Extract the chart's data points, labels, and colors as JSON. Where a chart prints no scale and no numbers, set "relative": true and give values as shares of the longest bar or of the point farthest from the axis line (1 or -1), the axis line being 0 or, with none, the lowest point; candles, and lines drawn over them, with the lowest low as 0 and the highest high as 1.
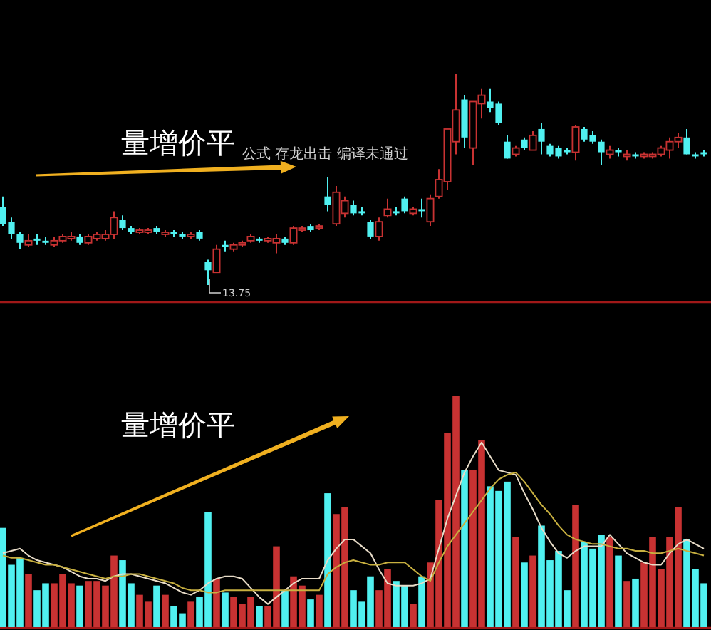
{
  "chart_data": [
    {
      "type": "candlestick",
      "relative": true,
      "categories": [
        null,
        null,
        null,
        null,
        null,
        null,
        null,
        null,
        null,
        null,
        null,
        null,
        null,
        null,
        null,
        null,
        null,
        null,
        null,
        null,
        null,
        null,
        null,
        null,
        null,
        null,
        null,
        null,
        null,
        null,
        null,
        null,
        null,
        null,
        null,
        null,
        null,
        null,
        null,
        null,
        null,
        null,
        null,
        null,
        null,
        null,
        null,
        null,
        null,
        null,
        null,
        null,
        null,
        null,
        null,
        null,
        null,
        null,
        null,
        null,
        null,
        null,
        null,
        null,
        null,
        null,
        null,
        null,
        null,
        null,
        null,
        null,
        null,
        null,
        null,
        null,
        null,
        null,
        null,
        null,
        null,
        null,
        null
      ],
      "ohlc": [
        [
          0.37,
          0.42,
          0.28,
          0.29
        ],
        [
          0.3,
          0.32,
          0.22,
          0.24
        ],
        [
          0.24,
          0.25,
          0.17,
          0.2
        ],
        [
          0.19,
          0.24,
          0.18,
          0.21
        ],
        [
          0.22,
          0.24,
          0.19,
          0.21
        ],
        [
          0.21,
          0.23,
          0.19,
          0.2
        ],
        [
          0.19,
          0.23,
          0.18,
          0.21
        ],
        [
          0.21,
          0.24,
          0.2,
          0.23
        ],
        [
          0.22,
          0.25,
          0.21,
          0.23
        ],
        [
          0.23,
          0.24,
          0.19,
          0.2
        ],
        [
          0.2,
          0.24,
          0.19,
          0.23
        ],
        [
          0.22,
          0.25,
          0.21,
          0.24
        ],
        [
          0.22,
          0.26,
          0.21,
          0.24
        ],
        [
          0.24,
          0.35,
          0.22,
          0.32
        ],
        [
          0.31,
          0.33,
          0.26,
          0.27
        ],
        [
          0.27,
          0.28,
          0.24,
          0.25
        ],
        [
          0.25,
          0.27,
          0.24,
          0.26
        ],
        [
          0.25,
          0.27,
          0.24,
          0.26
        ],
        [
          0.27,
          0.28,
          0.24,
          0.25
        ],
        [
          0.24,
          0.26,
          0.23,
          0.25
        ],
        [
          0.25,
          0.26,
          0.23,
          0.24
        ],
        [
          0.24,
          0.25,
          0.22,
          0.23
        ],
        [
          0.23,
          0.25,
          0.22,
          0.24
        ],
        [
          0.25,
          0.26,
          0.21,
          0.22
        ],
        [
          0.11,
          0.12,
          0,
          0.07
        ],
        [
          0.06,
          0.19,
          0.06,
          0.17
        ],
        [
          0.19,
          0.21,
          0.16,
          0.18
        ],
        [
          0.17,
          0.2,
          0.16,
          0.19
        ],
        [
          0.19,
          0.21,
          0.18,
          0.2
        ],
        [
          0.21,
          0.24,
          0.2,
          0.23
        ],
        [
          0.22,
          0.23,
          0.2,
          0.21
        ],
        [
          0.21,
          0.23,
          0.2,
          0.22
        ],
        [
          0.2,
          0.24,
          0.15,
          0.22
        ],
        [
          0.22,
          0.23,
          0.19,
          0.2
        ],
        [
          0.2,
          0.28,
          0.19,
          0.27
        ],
        [
          0.26,
          0.28,
          0.25,
          0.27
        ],
        [
          0.28,
          0.29,
          0.25,
          0.26
        ],
        [
          0.27,
          0.29,
          0.26,
          0.28
        ],
        [
          0.42,
          0.51,
          0.35,
          0.38
        ],
        [
          0.29,
          0.47,
          0.28,
          0.44
        ],
        [
          0.34,
          0.42,
          0.32,
          0.4
        ],
        [
          0.38,
          0.4,
          0.33,
          0.34
        ],
        [
          0.35,
          0.37,
          0.33,
          0.34
        ],
        [
          0.3,
          0.31,
          0.22,
          0.23
        ],
        [
          0.23,
          0.32,
          0.21,
          0.3
        ],
        [
          0.33,
          0.41,
          0.32,
          0.36
        ],
        [
          0.35,
          0.37,
          0.33,
          0.34
        ],
        [
          0.41,
          0.42,
          0.34,
          0.35
        ],
        [
          0.34,
          0.37,
          0.33,
          0.36
        ],
        [
          0.36,
          0.41,
          0.32,
          0.35
        ],
        [
          0.3,
          0.43,
          0.28,
          0.41
        ],
        [
          0.42,
          0.55,
          0.41,
          0.5
        ],
        [
          0.49,
          0.74,
          0.45,
          0.74
        ],
        [
          0.68,
          1,
          0.62,
          0.83
        ],
        [
          0.88,
          0.9,
          0.65,
          0.7
        ],
        [
          0.65,
          0.87,
          0.57,
          0.87
        ],
        [
          0.86,
          0.93,
          0.79,
          0.9
        ],
        [
          0.87,
          0.93,
          0.82,
          0.84
        ],
        [
          0.86,
          0.87,
          0.76,
          0.77
        ],
        [
          0.68,
          0.71,
          0.6,
          0.6
        ],
        [
          0.62,
          0.66,
          0.61,
          0.65
        ],
        [
          0.69,
          0.7,
          0.64,
          0.65
        ],
        [
          0.64,
          0.73,
          0.64,
          0.71
        ],
        [
          0.74,
          0.77,
          0.62,
          0.68
        ],
        [
          0.66,
          0.67,
          0.61,
          0.62
        ],
        [
          0.65,
          0.66,
          0.6,
          0.61
        ],
        [
          0.64,
          0.65,
          0.62,
          0.63
        ],
        [
          0.63,
          0.76,
          0.59,
          0.75
        ],
        [
          0.74,
          0.75,
          0.68,
          0.69
        ],
        [
          0.71,
          0.73,
          0.67,
          0.68
        ],
        [
          0.68,
          0.69,
          0.57,
          0.63
        ],
        [
          0.62,
          0.66,
          0.6,
          0.64
        ],
        [
          0.64,
          0.65,
          0.61,
          0.63
        ],
        [
          0.61,
          0.64,
          0.59,
          0.62
        ],
        [
          0.62,
          0.63,
          0.6,
          0.61
        ],
        [
          0.61,
          0.63,
          0.6,
          0.62
        ],
        [
          0.61,
          0.63,
          0.6,
          0.62
        ],
        [
          0.62,
          0.66,
          0.61,
          0.65
        ],
        [
          0.64,
          0.7,
          0.6,
          0.68
        ],
        [
          0.68,
          0.72,
          0.65,
          0.7
        ],
        [
          0.7,
          0.74,
          0.62,
          0.62
        ],
        [
          0.62,
          0.63,
          0.6,
          0.61
        ],
        [
          0.63,
          0.64,
          0.61,
          0.62
        ]
      ],
      "colors": [
        "#50f0f0",
        "#50f0f0",
        "#50f0f0",
        "#c83232",
        "#50f0f0",
        "#50f0f0",
        "#c83232",
        "#c83232",
        "#c83232",
        "#50f0f0",
        "#c83232",
        "#c83232",
        "#c83232",
        "#c83232",
        "#50f0f0",
        "#50f0f0",
        "#c83232",
        "#c83232",
        "#50f0f0",
        "#c83232",
        "#50f0f0",
        "#50f0f0",
        "#c83232",
        "#50f0f0",
        "#50f0f0",
        "#c83232",
        "#50f0f0",
        "#c83232",
        "#c83232",
        "#c83232",
        "#50f0f0",
        "#c83232",
        "#c83232",
        "#50f0f0",
        "#c83232",
        "#c83232",
        "#50f0f0",
        "#c83232",
        "#50f0f0",
        "#c83232",
        "#c83232",
        "#50f0f0",
        "#50f0f0",
        "#50f0f0",
        "#c83232",
        "#c83232",
        "#50f0f0",
        "#50f0f0",
        "#c83232",
        "#50f0f0",
        "#c83232",
        "#c83232",
        "#c83232",
        "#c83232",
        "#50f0f0",
        "#c83232",
        "#c83232",
        "#50f0f0",
        "#50f0f0",
        "#50f0f0",
        "#c83232",
        "#50f0f0",
        "#c83232",
        "#50f0f0",
        "#50f0f0",
        "#50f0f0",
        "#50f0f0",
        "#c83232",
        "#50f0f0",
        "#50f0f0",
        "#50f0f0",
        "#c83232",
        "#50f0f0",
        "#c83232",
        "#50f0f0",
        "#c83232",
        "#c83232",
        "#c83232",
        "#c83232",
        "#c83232",
        "#50f0f0",
        "#50f0f0",
        "#50f0f0"
      ],
      "annotations": [
        "量增价平",
        "公式 存龙出击 编译未通过",
        "13.75"
      ]
    },
    {
      "type": "bar",
      "relative": true,
      "categories": [
        null,
        null,
        null,
        null,
        null,
        null,
        null,
        null,
        null,
        null,
        null,
        null,
        null,
        null,
        null,
        null,
        null,
        null,
        null,
        null,
        null,
        null,
        null,
        null,
        null,
        null,
        null,
        null,
        null,
        null,
        null,
        null,
        null,
        null,
        null,
        null,
        null,
        null,
        null,
        null,
        null,
        null,
        null,
        null,
        null,
        null,
        null,
        null,
        null,
        null,
        null,
        null,
        null,
        null,
        null,
        null,
        null,
        null,
        null,
        null,
        null,
        null,
        null,
        null,
        null,
        null,
        null,
        null,
        null,
        null,
        null,
        null,
        null,
        null,
        null,
        null,
        null,
        null,
        null,
        null,
        null,
        null,
        null
      ],
      "series": [
        {
          "type": "bar",
          "values": [
            0.43,
            0.27,
            0.3,
            0.23,
            0.16,
            0.19,
            0.19,
            0.23,
            0.19,
            0.18,
            0.2,
            0.2,
            0.18,
            0.31,
            0.29,
            0.19,
            0.14,
            0.11,
            0.18,
            0.14,
            0.09,
            0.06,
            0.11,
            0.13,
            0.5,
            0.21,
            0.15,
            0.13,
            0.1,
            0.13,
            0.09,
            0.09,
            0.35,
            0.16,
            0.22,
            0.18,
            0.12,
            0.14,
            0.58,
            0.49,
            0.52,
            0.16,
            0.11,
            0.22,
            0.16,
            0.25,
            0.2,
            0.18,
            0.1,
            0.22,
            0.28,
            0.55,
            0.84,
            1,
            0.68,
            0.68,
            0.81,
            0.61,
            0.59,
            0.63,
            0.39,
            0.28,
            0.31,
            0.44,
            0.29,
            0.33,
            0.16,
            0.53,
            0.37,
            0.34,
            0.4,
            0.39,
            0.31,
            0.2,
            0.21,
            0.28,
            0.39,
            0.25,
            0.39,
            0.52,
            0.38,
            0.25,
            0.19
          ],
          "colors": [
            "#50f0f0",
            "#50f0f0",
            "#50f0f0",
            "#c83232",
            "#50f0f0",
            "#50f0f0",
            "#c83232",
            "#c83232",
            "#c83232",
            "#50f0f0",
            "#c83232",
            "#c83232",
            "#c83232",
            "#c83232",
            "#50f0f0",
            "#50f0f0",
            "#c83232",
            "#c83232",
            "#50f0f0",
            "#c83232",
            "#50f0f0",
            "#50f0f0",
            "#c83232",
            "#50f0f0",
            "#50f0f0",
            "#c83232",
            "#50f0f0",
            "#c83232",
            "#c83232",
            "#c83232",
            "#50f0f0",
            "#c83232",
            "#c83232",
            "#50f0f0",
            "#c83232",
            "#c83232",
            "#50f0f0",
            "#c83232",
            "#50f0f0",
            "#c83232",
            "#c83232",
            "#50f0f0",
            "#50f0f0",
            "#50f0f0",
            "#c83232",
            "#c83232",
            "#50f0f0",
            "#50f0f0",
            "#c83232",
            "#50f0f0",
            "#c83232",
            "#c83232",
            "#c83232",
            "#c83232",
            "#50f0f0",
            "#c83232",
            "#c83232",
            "#50f0f0",
            "#50f0f0",
            "#50f0f0",
            "#c83232",
            "#50f0f0",
            "#c83232",
            "#50f0f0",
            "#50f0f0",
            "#50f0f0",
            "#50f0f0",
            "#c83232",
            "#50f0f0",
            "#50f0f0",
            "#50f0f0",
            "#c83232",
            "#50f0f0",
            "#c83232",
            "#50f0f0",
            "#c83232",
            "#c83232",
            "#c83232",
            "#c83232",
            "#c83232",
            "#50f0f0",
            "#50f0f0",
            "#50f0f0"
          ]
        },
        {
          "type": "line",
          "color": "#e8dcc8",
          "values": [
            0.32,
            0.33,
            0.34,
            0.31,
            0.29,
            0.28,
            0.27,
            0.26,
            0.24,
            0.22,
            0.21,
            0.21,
            0.2,
            0.22,
            0.23,
            0.23,
            0.22,
            0.21,
            0.2,
            0.19,
            0.17,
            0.15,
            0.14,
            0.16,
            0.19,
            0.21,
            0.22,
            0.22,
            0.21,
            0.17,
            0.13,
            0.1,
            0.13,
            0.16,
            0.19,
            0.21,
            0.21,
            0.21,
            0.29,
            0.34,
            0.38,
            0.38,
            0.35,
            0.32,
            0.25,
            0.19,
            0.18,
            0.18,
            0.18,
            0.19,
            0.21,
            0.34,
            0.47,
            0.57,
            0.67,
            0.74,
            0.8,
            0.74,
            0.68,
            0.67,
            0.66,
            0.58,
            0.51,
            0.43,
            0.37,
            0.32,
            0.3,
            0.33,
            0.35,
            0.35,
            0.35,
            0.4,
            0.36,
            0.32,
            0.3,
            0.28,
            0.27,
            0.27,
            0.32,
            0.36,
            0.38,
            0.36,
            0.34
          ]
        },
        {
          "type": "line",
          "color": "#c8b040",
          "values": [
            0.31,
            0.3,
            0.3,
            0.29,
            0.28,
            0.27,
            0.27,
            0.26,
            0.25,
            0.24,
            0.23,
            0.22,
            0.21,
            0.22,
            0.22,
            0.23,
            0.23,
            0.22,
            0.21,
            0.2,
            0.19,
            0.17,
            0.16,
            0.16,
            0.15,
            0.15,
            0.16,
            0.16,
            0.16,
            0.16,
            0.16,
            0.16,
            0.16,
            0.16,
            0.16,
            0.16,
            0.16,
            0.16,
            0.23,
            0.26,
            0.28,
            0.29,
            0.28,
            0.27,
            0.27,
            0.28,
            0.28,
            0.28,
            0.25,
            0.22,
            0.2,
            0.28,
            0.35,
            0.4,
            0.45,
            0.5,
            0.55,
            0.6,
            0.64,
            0.66,
            0.67,
            0.63,
            0.58,
            0.53,
            0.49,
            0.44,
            0.4,
            0.38,
            0.37,
            0.36,
            0.36,
            0.35,
            0.34,
            0.34,
            0.33,
            0.33,
            0.32,
            0.32,
            0.33,
            0.34,
            0.33,
            0.32,
            0.31
          ]
        }
      ],
      "annotations": [
        "量增价平"
      ]
    }
  ]
}
